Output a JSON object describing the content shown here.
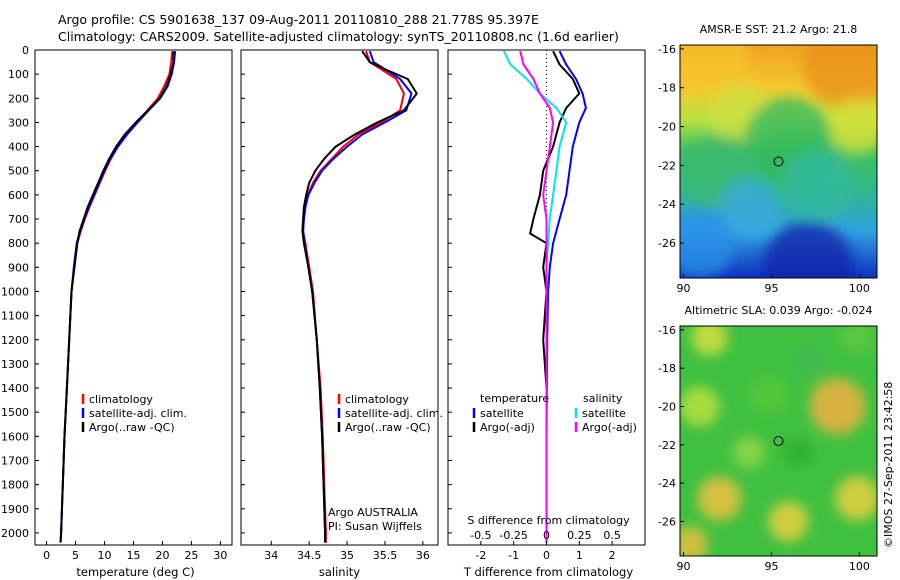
{
  "header": {
    "line1": "Argo profile: CS 5901638_137 09-Aug-2011 20110810_288 21.778S 95.397E",
    "line2": "Climatology: CARS2009. Satellite-adjusted climatology: synTS_20110808.nc (1.6d earlier)"
  },
  "stamp": "©IMOS 27-Sep-2011 23:42:58",
  "colors": {
    "red": "#ff0000",
    "blue": "#0000ff",
    "black": "#000000",
    "cyan": "#00e5f0",
    "magenta": "#ff00ff"
  },
  "chart_data": [
    {
      "type": "line",
      "id": "temperature",
      "xlabel": "temperature (deg C)",
      "xlim": [
        -2,
        32
      ],
      "ylim": [
        2050,
        0
      ],
      "xticks": [
        0,
        5,
        10,
        15,
        20,
        25,
        30
      ],
      "yticks": [
        0,
        100,
        200,
        300,
        400,
        500,
        600,
        700,
        800,
        900,
        1000,
        1100,
        1200,
        1300,
        1400,
        1500,
        1600,
        1700,
        1800,
        1900,
        2000
      ],
      "legend": {
        "position": "lower-middle",
        "entries": [
          {
            "label": "climatology",
            "color": "red"
          },
          {
            "label": "satellite-adj. clim.",
            "color": "blue"
          },
          {
            "label": "Argo(..raw -QC)",
            "color": "black"
          }
        ]
      },
      "series": [
        {
          "name": "climatology",
          "color": "red",
          "points": [
            [
              21.7,
              5
            ],
            [
              21.5,
              50
            ],
            [
              21.2,
              100
            ],
            [
              20.3,
              150
            ],
            [
              19.2,
              200
            ],
            [
              17.4,
              250
            ],
            [
              15.6,
              300
            ],
            [
              13.8,
              350
            ],
            [
              12.3,
              400
            ],
            [
              11.1,
              450
            ],
            [
              10.1,
              500
            ],
            [
              9.2,
              550
            ],
            [
              8.3,
              600
            ],
            [
              7.4,
              650
            ],
            [
              6.6,
              700
            ],
            [
              5.9,
              750
            ],
            [
              5.3,
              800
            ],
            [
              4.8,
              900
            ],
            [
              4.3,
              1000
            ],
            [
              3.9,
              1200
            ],
            [
              3.5,
              1400
            ],
            [
              3.1,
              1600
            ],
            [
              2.8,
              1800
            ],
            [
              2.5,
              2000
            ],
            [
              2.4,
              2040
            ]
          ]
        },
        {
          "name": "satellite-adj. clim.",
          "color": "blue",
          "points": [
            [
              22.2,
              5
            ],
            [
              22.0,
              50
            ],
            [
              21.6,
              100
            ],
            [
              20.9,
              150
            ],
            [
              19.6,
              200
            ],
            [
              17.6,
              250
            ],
            [
              15.7,
              300
            ],
            [
              13.9,
              350
            ],
            [
              12.3,
              400
            ],
            [
              11.0,
              450
            ],
            [
              10.0,
              500
            ],
            [
              9.1,
              550
            ],
            [
              8.2,
              600
            ],
            [
              7.3,
              650
            ],
            [
              6.5,
              700
            ],
            [
              5.8,
              750
            ],
            [
              5.2,
              800
            ],
            [
              4.7,
              900
            ],
            [
              4.3,
              1000
            ],
            [
              3.9,
              1200
            ],
            [
              3.5,
              1400
            ],
            [
              3.1,
              1600
            ],
            [
              2.8,
              1800
            ],
            [
              2.5,
              2000
            ],
            [
              2.4,
              2040
            ]
          ]
        },
        {
          "name": "Argo",
          "color": "black",
          "points": [
            [
              21.9,
              5
            ],
            [
              21.9,
              50
            ],
            [
              21.4,
              100
            ],
            [
              20.7,
              150
            ],
            [
              19.5,
              200
            ],
            [
              17.5,
              250
            ],
            [
              15.4,
              300
            ],
            [
              13.5,
              350
            ],
            [
              12.0,
              400
            ],
            [
              10.8,
              450
            ],
            [
              9.8,
              500
            ],
            [
              8.9,
              550
            ],
            [
              8.0,
              600
            ],
            [
              7.1,
              650
            ],
            [
              6.4,
              700
            ],
            [
              5.7,
              750
            ],
            [
              5.3,
              800
            ],
            [
              4.8,
              900
            ],
            [
              4.3,
              1000
            ],
            [
              3.9,
              1200
            ],
            [
              3.5,
              1400
            ],
            [
              3.1,
              1600
            ],
            [
              2.8,
              1800
            ],
            [
              2.5,
              2000
            ],
            [
              2.4,
              2040
            ]
          ]
        }
      ]
    },
    {
      "type": "line",
      "id": "salinity",
      "xlabel": "salinity",
      "xlim": [
        33.6,
        36.2
      ],
      "ylim": [
        2050,
        0
      ],
      "xticks": [
        34,
        34.5,
        35,
        35.5,
        36
      ],
      "legend": {
        "position": "lower-middle",
        "entries": [
          {
            "label": "climatology",
            "color": "red"
          },
          {
            "label": "satellite-adj. clim.",
            "color": "blue"
          },
          {
            "label": "Argo(..raw -QC)",
            "color": "black"
          }
        ]
      },
      "annotation": [
        "Argo AUSTRALIA",
        "PI: Susan Wijffels"
      ],
      "series": [
        {
          "name": "climatology",
          "color": "red",
          "points": [
            [
              35.25,
              5
            ],
            [
              35.3,
              50
            ],
            [
              35.45,
              80
            ],
            [
              35.65,
              120
            ],
            [
              35.75,
              180
            ],
            [
              35.7,
              250
            ],
            [
              35.45,
              300
            ],
            [
              35.15,
              350
            ],
            [
              34.95,
              400
            ],
            [
              34.8,
              450
            ],
            [
              34.65,
              500
            ],
            [
              34.55,
              550
            ],
            [
              34.48,
              600
            ],
            [
              34.45,
              650
            ],
            [
              34.43,
              700
            ],
            [
              34.42,
              750
            ],
            [
              34.45,
              800
            ],
            [
              34.5,
              900
            ],
            [
              34.55,
              1000
            ],
            [
              34.6,
              1200
            ],
            [
              34.65,
              1400
            ],
            [
              34.68,
              1600
            ],
            [
              34.7,
              1800
            ],
            [
              34.72,
              2000
            ],
            [
              34.72,
              2040
            ]
          ]
        },
        {
          "name": "satellite-adj. clim.",
          "color": "blue",
          "points": [
            [
              35.3,
              5
            ],
            [
              35.35,
              50
            ],
            [
              35.5,
              80
            ],
            [
              35.7,
              120
            ],
            [
              35.85,
              180
            ],
            [
              35.78,
              250
            ],
            [
              35.5,
              300
            ],
            [
              35.2,
              350
            ],
            [
              35.0,
              400
            ],
            [
              34.82,
              450
            ],
            [
              34.67,
              500
            ],
            [
              34.57,
              550
            ],
            [
              34.49,
              600
            ],
            [
              34.45,
              650
            ],
            [
              34.43,
              700
            ],
            [
              34.42,
              750
            ],
            [
              34.44,
              800
            ],
            [
              34.49,
              900
            ],
            [
              34.54,
              1000
            ],
            [
              34.6,
              1200
            ],
            [
              34.64,
              1400
            ],
            [
              34.67,
              1600
            ],
            [
              34.69,
              1800
            ],
            [
              34.71,
              2000
            ],
            [
              34.71,
              2040
            ]
          ]
        },
        {
          "name": "Argo",
          "color": "black",
          "points": [
            [
              35.2,
              5
            ],
            [
              35.3,
              50
            ],
            [
              35.5,
              80
            ],
            [
              35.8,
              120
            ],
            [
              35.92,
              180
            ],
            [
              35.75,
              250
            ],
            [
              35.4,
              300
            ],
            [
              35.1,
              350
            ],
            [
              34.85,
              400
            ],
            [
              34.7,
              450
            ],
            [
              34.58,
              500
            ],
            [
              34.5,
              550
            ],
            [
              34.46,
              600
            ],
            [
              34.43,
              650
            ],
            [
              34.42,
              700
            ],
            [
              34.41,
              750
            ],
            [
              34.43,
              800
            ],
            [
              34.49,
              900
            ],
            [
              34.54,
              1000
            ],
            [
              34.6,
              1200
            ],
            [
              34.64,
              1400
            ],
            [
              34.67,
              1600
            ],
            [
              34.69,
              1800
            ],
            [
              34.71,
              2000
            ],
            [
              34.71,
              2040
            ]
          ]
        }
      ]
    },
    {
      "type": "line",
      "id": "differences",
      "xlabel": "T difference from climatology",
      "x2label": "S difference from climatology",
      "xlim": [
        -3,
        3
      ],
      "ylim": [
        2050,
        0
      ],
      "xticks": [
        -2,
        -1,
        0,
        1,
        2
      ],
      "x2ticks": [
        {
          "label": "-0.5",
          "t": -2
        },
        {
          "label": "-0.25",
          "t": -1
        },
        {
          "label": "0",
          "t": 0
        },
        {
          "label": "0.25",
          "t": 1
        },
        {
          "label": "0.5",
          "t": 2
        }
      ],
      "legend": {
        "position": "lower",
        "left_title": "temperature",
        "right_title": "salinity",
        "left": [
          {
            "label": "satellite",
            "color": "blue"
          },
          {
            "label": "Argo(-adj)",
            "color": "black"
          }
        ],
        "right": [
          {
            "label": "satellite",
            "color": "cyan"
          },
          {
            "label": "Argo(-adj)",
            "color": "magenta"
          }
        ]
      },
      "series": [
        {
          "name": "T satellite",
          "color": "blue",
          "points": [
            [
              0.4,
              5
            ],
            [
              0.6,
              60
            ],
            [
              0.9,
              120
            ],
            [
              1.1,
              180
            ],
            [
              1.2,
              240
            ],
            [
              1.0,
              300
            ],
            [
              0.8,
              400
            ],
            [
              0.7,
              500
            ],
            [
              0.6,
              600
            ],
            [
              0.4,
              700
            ],
            [
              0.2,
              800
            ],
            [
              0.1,
              900
            ],
            [
              0.05,
              1000
            ],
            [
              0.02,
              1200
            ],
            [
              0.0,
              1600
            ],
            [
              0.0,
              2040
            ]
          ]
        },
        {
          "name": "T Argo",
          "color": "black",
          "points": [
            [
              0.2,
              5
            ],
            [
              0.4,
              60
            ],
            [
              0.8,
              120
            ],
            [
              1.0,
              180
            ],
            [
              0.6,
              240
            ],
            [
              0.4,
              300
            ],
            [
              0.2,
              400
            ],
            [
              -0.1,
              500
            ],
            [
              -0.2,
              600
            ],
            [
              -0.4,
              700
            ],
            [
              -0.5,
              760
            ],
            [
              0.0,
              800
            ],
            [
              -0.1,
              900
            ],
            [
              0.0,
              1000
            ],
            [
              -0.1,
              1200
            ],
            [
              0.0,
              1400
            ],
            [
              0.0,
              2040
            ]
          ]
        },
        {
          "name": "S satellite",
          "color": "cyan",
          "points": [
            [
              -1.3,
              5
            ],
            [
              -1.1,
              60
            ],
            [
              -0.6,
              120
            ],
            [
              -0.2,
              180
            ],
            [
              0.3,
              240
            ],
            [
              0.6,
              300
            ],
            [
              0.4,
              400
            ],
            [
              0.3,
              500
            ],
            [
              0.2,
              600
            ],
            [
              0.1,
              700
            ],
            [
              0.05,
              800
            ],
            [
              0.0,
              900
            ],
            [
              0.0,
              1000
            ],
            [
              0.0,
              2040
            ]
          ]
        },
        {
          "name": "S Argo",
          "color": "magenta",
          "points": [
            [
              -0.8,
              5
            ],
            [
              -0.7,
              60
            ],
            [
              -0.4,
              120
            ],
            [
              -0.2,
              180
            ],
            [
              0.1,
              240
            ],
            [
              0.2,
              300
            ],
            [
              0.1,
              400
            ],
            [
              0.0,
              500
            ],
            [
              -0.1,
              600
            ],
            [
              0.0,
              700
            ],
            [
              0.0,
              800
            ],
            [
              0.0,
              900
            ],
            [
              0.0,
              1000
            ],
            [
              0.0,
              2040
            ]
          ]
        }
      ]
    },
    {
      "type": "heatmap",
      "id": "sst-map",
      "title": "AMSR-E SST: 21.2 Argo: 21.8",
      "xlim": [
        89.8,
        101
      ],
      "ylim": [
        -27.8,
        -15.8
      ],
      "xticks": [
        90,
        95,
        100
      ],
      "yticks": [
        -16,
        -18,
        -20,
        -22,
        -24,
        -26
      ],
      "marker": {
        "x": 95.4,
        "y": -21.8
      }
    },
    {
      "type": "heatmap",
      "id": "sla-map",
      "title": "Altimetric SLA: 0.039 Argo: -0.024",
      "xlim": [
        89.8,
        101
      ],
      "ylim": [
        -27.8,
        -15.8
      ],
      "xticks": [
        90,
        95,
        100
      ],
      "yticks": [
        -16,
        -18,
        -20,
        -22,
        -24,
        -26
      ],
      "marker": {
        "x": 95.4,
        "y": -21.8
      }
    }
  ]
}
